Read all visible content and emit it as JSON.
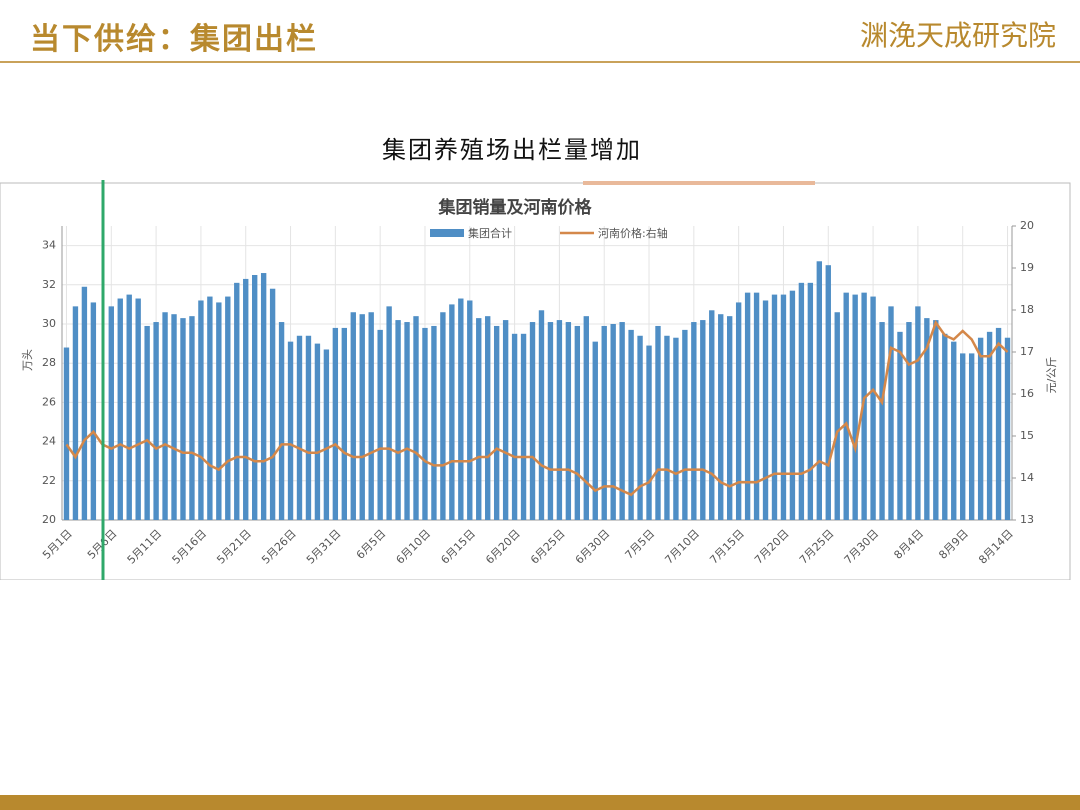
{
  "header": {
    "title": "当下供给：集团出栏",
    "logo": "渊浼天成研究院"
  },
  "subtitle": "集团养殖场出栏量增加",
  "chart_data": {
    "type": "bar",
    "title": "集团销量及河南价格",
    "ylabel": "万头",
    "y2label": "元/公斤",
    "categories": [
      "5月1日",
      null,
      null,
      null,
      null,
      "5月6日",
      null,
      null,
      null,
      null,
      "5月11日",
      null,
      null,
      null,
      null,
      "5月16日",
      null,
      null,
      null,
      null,
      "5月21日",
      null,
      null,
      null,
      null,
      "5月26日",
      null,
      null,
      null,
      null,
      "5月31日",
      null,
      null,
      null,
      null,
      "6月5日",
      null,
      null,
      null,
      null,
      "6月10日",
      null,
      null,
      null,
      null,
      "6月15日",
      null,
      null,
      null,
      null,
      "6月20日",
      null,
      null,
      null,
      null,
      "6月25日",
      null,
      null,
      null,
      null,
      "6月30日",
      null,
      null,
      null,
      null,
      "7月5日",
      null,
      null,
      null,
      null,
      "7月10日",
      null,
      null,
      null,
      null,
      "7月15日",
      null,
      null,
      null,
      null,
      "7月20日",
      null,
      null,
      null,
      null,
      "7月25日",
      null,
      null,
      null,
      null,
      "7月30日",
      null,
      null,
      null,
      null,
      "8月4日",
      null,
      null,
      null,
      null,
      "8月9日",
      null,
      null,
      null,
      null,
      "8月14日"
    ],
    "series": [
      {
        "name": "集团合计",
        "type": "bar",
        "color": "#4f8ec5",
        "values": [
          28.8,
          30.9,
          31.9,
          31.1,
          null,
          30.9,
          31.3,
          31.5,
          31.3,
          29.9,
          30.1,
          30.6,
          30.5,
          30.3,
          30.4,
          31.2,
          31.4,
          31.1,
          31.4,
          32.1,
          32.3,
          32.5,
          32.6,
          31.8,
          30.1,
          29.1,
          29.4,
          29.4,
          29.0,
          28.7,
          29.8,
          29.8,
          30.6,
          30.5,
          30.6,
          29.7,
          30.9,
          30.2,
          30.1,
          30.4,
          29.8,
          29.9,
          30.6,
          31.0,
          31.3,
          31.2,
          30.3,
          30.4,
          29.9,
          30.2,
          29.5,
          29.5,
          30.1,
          30.7,
          30.1,
          30.2,
          30.1,
          29.9,
          30.4,
          29.1,
          29.9,
          30.0,
          30.1,
          29.7,
          29.4,
          28.9,
          29.9,
          29.4,
          29.3,
          29.7,
          30.1,
          30.2,
          30.7,
          30.5,
          30.4,
          31.1,
          31.6,
          31.6,
          31.2,
          31.5,
          31.5,
          31.7,
          32.1,
          32.1,
          33.2,
          33.0,
          30.6,
          31.6,
          31.5,
          31.6,
          31.4,
          30.1,
          30.9,
          29.6,
          30.1,
          30.9,
          30.3,
          30.2,
          29.5,
          29.1,
          28.5,
          28.5,
          29.3,
          29.6,
          29.8,
          29.3
        ]
      },
      {
        "name": "河南价格:右轴",
        "type": "line",
        "axis": "y2",
        "color": "#d4884a",
        "values": [
          14.8,
          14.5,
          14.9,
          15.1,
          14.8,
          14.7,
          14.8,
          14.7,
          14.8,
          14.9,
          14.7,
          14.8,
          14.7,
          14.6,
          14.6,
          14.5,
          14.3,
          14.2,
          14.4,
          14.5,
          14.5,
          14.4,
          14.4,
          14.5,
          14.8,
          14.8,
          14.7,
          14.6,
          14.6,
          14.7,
          14.8,
          14.6,
          14.5,
          14.5,
          14.6,
          14.7,
          14.7,
          14.6,
          14.7,
          14.6,
          14.4,
          14.3,
          14.3,
          14.4,
          14.4,
          14.4,
          14.5,
          14.5,
          14.7,
          14.6,
          14.5,
          14.5,
          14.5,
          14.3,
          14.2,
          14.2,
          14.2,
          14.1,
          13.9,
          13.7,
          13.8,
          13.8,
          13.7,
          13.6,
          13.8,
          13.9,
          14.2,
          14.2,
          14.1,
          14.2,
          14.2,
          14.2,
          14.1,
          13.9,
          13.8,
          13.9,
          13.9,
          13.9,
          14.0,
          14.1,
          14.1,
          14.1,
          14.1,
          14.2,
          14.4,
          14.3,
          15.1,
          15.3,
          14.7,
          15.9,
          16.1,
          15.8,
          17.1,
          17.0,
          16.7,
          16.8,
          17.1,
          17.7,
          17.4,
          17.3,
          17.5,
          17.3,
          16.9,
          16.9,
          17.2,
          17.0
        ]
      }
    ],
    "ylim": [
      20,
      35
    ],
    "yticks": [
      20,
      22,
      24,
      26,
      28,
      30,
      32,
      34
    ],
    "y2lim": [
      13,
      20
    ],
    "y2ticks": [
      13,
      14,
      15,
      16,
      17,
      18,
      19,
      20
    ],
    "grid": true
  }
}
